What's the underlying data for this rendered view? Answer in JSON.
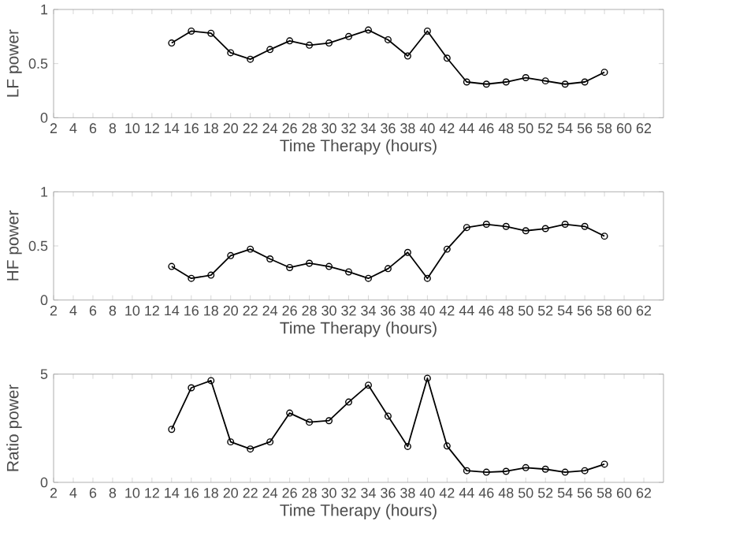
{
  "chart_data": [
    {
      "type": "line",
      "xlabel": "Time Therapy (hours)",
      "ylabel": "LF power",
      "x": [
        14,
        16,
        18,
        20,
        22,
        24,
        26,
        28,
        30,
        32,
        34,
        36,
        38,
        40,
        42,
        44,
        46,
        48,
        50,
        52,
        54,
        56,
        58
      ],
      "series": [
        {
          "color": "#000000",
          "values": [
            0.69,
            0.8,
            0.78,
            0.6,
            0.54,
            0.63,
            0.71,
            0.67,
            0.69,
            0.75,
            0.81,
            0.72,
            0.57,
            0.8,
            0.55,
            0.33,
            0.31,
            0.33,
            0.37,
            0.34,
            0.31,
            0.33,
            0.42
          ]
        }
      ],
      "xlim": [
        2,
        64
      ],
      "xticks": [
        2,
        4,
        6,
        8,
        10,
        12,
        14,
        16,
        18,
        20,
        22,
        24,
        26,
        28,
        30,
        32,
        34,
        36,
        38,
        40,
        42,
        44,
        46,
        48,
        50,
        52,
        54,
        56,
        58,
        60,
        62
      ],
      "ylim": [
        0,
        1
      ],
      "yticks": [
        0,
        0.5,
        1
      ],
      "marker": "circle",
      "line_style": "solid"
    },
    {
      "type": "line",
      "xlabel": "Time Therapy (hours)",
      "ylabel": "HF power",
      "x": [
        14,
        16,
        18,
        20,
        22,
        24,
        26,
        28,
        30,
        32,
        34,
        36,
        38,
        40,
        42,
        44,
        46,
        48,
        50,
        52,
        54,
        56,
        58
      ],
      "series": [
        {
          "color": "#000000",
          "values": [
            0.31,
            0.2,
            0.23,
            0.41,
            0.47,
            0.38,
            0.3,
            0.34,
            0.31,
            0.26,
            0.2,
            0.29,
            0.44,
            0.2,
            0.47,
            0.67,
            0.7,
            0.68,
            0.64,
            0.66,
            0.7,
            0.68,
            0.59
          ]
        }
      ],
      "xlim": [
        2,
        64
      ],
      "xticks": [
        2,
        4,
        6,
        8,
        10,
        12,
        14,
        16,
        18,
        20,
        22,
        24,
        26,
        28,
        30,
        32,
        34,
        36,
        38,
        40,
        42,
        44,
        46,
        48,
        50,
        52,
        54,
        56,
        58,
        60,
        62
      ],
      "ylim": [
        0,
        1
      ],
      "yticks": [
        0,
        0.5,
        1
      ],
      "marker": "circle",
      "line_style": "solid"
    },
    {
      "type": "line",
      "xlabel": "Time Therapy (hours)",
      "ylabel": "Ratio power",
      "x": [
        14,
        16,
        18,
        20,
        22,
        24,
        26,
        28,
        30,
        32,
        34,
        36,
        38,
        40,
        42,
        44,
        46,
        48,
        50,
        52,
        54,
        56,
        58
      ],
      "series": [
        {
          "color": "#000000",
          "values": [
            2.45,
            4.37,
            4.7,
            1.87,
            1.54,
            1.87,
            3.2,
            2.78,
            2.85,
            3.71,
            4.49,
            3.06,
            1.66,
            4.81,
            1.68,
            0.54,
            0.47,
            0.51,
            0.68,
            0.61,
            0.47,
            0.54,
            0.84
          ]
        }
      ],
      "xlim": [
        2,
        64
      ],
      "xticks": [
        2,
        4,
        6,
        8,
        10,
        12,
        14,
        16,
        18,
        20,
        22,
        24,
        26,
        28,
        30,
        32,
        34,
        36,
        38,
        40,
        42,
        44,
        46,
        48,
        50,
        52,
        54,
        56,
        58,
        60,
        62
      ],
      "ylim": [
        0,
        5
      ],
      "yticks": [
        0,
        5
      ],
      "marker": "circle",
      "line_style": "solid"
    }
  ]
}
